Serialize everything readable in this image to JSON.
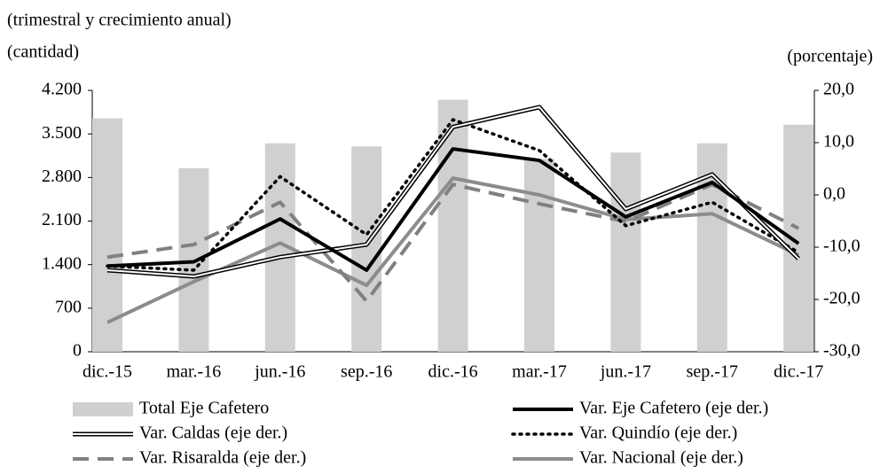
{
  "chart_data": {
    "type": "combo",
    "subtitle": "(trimestral y crecimiento anual)",
    "ylabel": "(cantidad)",
    "y2label": "(porcentaje)",
    "categories": [
      "dic.-15",
      "mar.-16",
      "jun.-16",
      "sep.-16",
      "dic.-16",
      "mar.-17",
      "jun.-17",
      "sep.-17",
      "dic.-17"
    ],
    "ylim": [
      0,
      4200
    ],
    "yticks": [
      0,
      {
        "value": 700,
        "label": "700"
      },
      {
        "value": 1400,
        "label": "1.400"
      },
      {
        "value": 2100,
        "label": "2.100"
      },
      {
        "value": 2800,
        "label": "2.800"
      },
      {
        "value": 3500,
        "label": "3.500"
      },
      {
        "value": 4200,
        "label": "4.200"
      }
    ],
    "y2lim": [
      -30,
      20
    ],
    "y2ticks": [
      {
        "value": -30,
        "label": "-30,0"
      },
      {
        "value": -20,
        "label": "-20,0"
      },
      {
        "value": -10,
        "label": "-10,0"
      },
      {
        "value": 0,
        "label": "0,0"
      },
      {
        "value": 10,
        "label": "10,0"
      },
      {
        "value": 20,
        "label": "20,0"
      }
    ],
    "series": [
      {
        "name": "Total Eje Cafetero",
        "type": "bar",
        "color": "#d0d0d0",
        "values": [
          3750,
          2950,
          3350,
          3300,
          4050,
          3100,
          3200,
          3350,
          3650
        ]
      },
      {
        "name": "Var. Eje Cafetero (eje der.)",
        "type": "line",
        "style": "solid",
        "axis": "y2",
        "color": "#000000",
        "values": [
          -13.6,
          -12.8,
          -4.6,
          -14.4,
          8.8,
          6.6,
          -4.2,
          2.4,
          -9.3
        ]
      },
      {
        "name": "Var. Caldas (eje der.)",
        "type": "line",
        "style": "double",
        "axis": "y2",
        "color": "#000000",
        "values": [
          -14.4,
          -15.6,
          -11.9,
          -9.5,
          13.0,
          16.8,
          -2.7,
          3.9,
          -12.2
        ]
      },
      {
        "name": "Var. Quindío (eje der.)",
        "type": "line",
        "style": "dotted",
        "axis": "y2",
        "color": "#000000",
        "values": [
          -13.6,
          -14.4,
          3.5,
          -7.6,
          14.4,
          8.5,
          -5.9,
          -1.4,
          -11.0
        ]
      },
      {
        "name": "Var. Risaralda (eje der.)",
        "type": "line",
        "style": "dashed",
        "axis": "y2",
        "color": "#808080",
        "values": [
          -11.9,
          -9.5,
          -1.4,
          -20.3,
          2.0,
          -1.7,
          -5.1,
          2.0,
          -6.4
        ]
      },
      {
        "name": "Var. Nacional (eje der.)",
        "type": "line",
        "style": "solid",
        "axis": "y2",
        "color": "#8c8c8c",
        "values": [
          -24.4,
          -16.6,
          -9.2,
          -17.3,
          3.2,
          0.0,
          -4.7,
          -3.6,
          -11.5
        ]
      }
    ]
  }
}
